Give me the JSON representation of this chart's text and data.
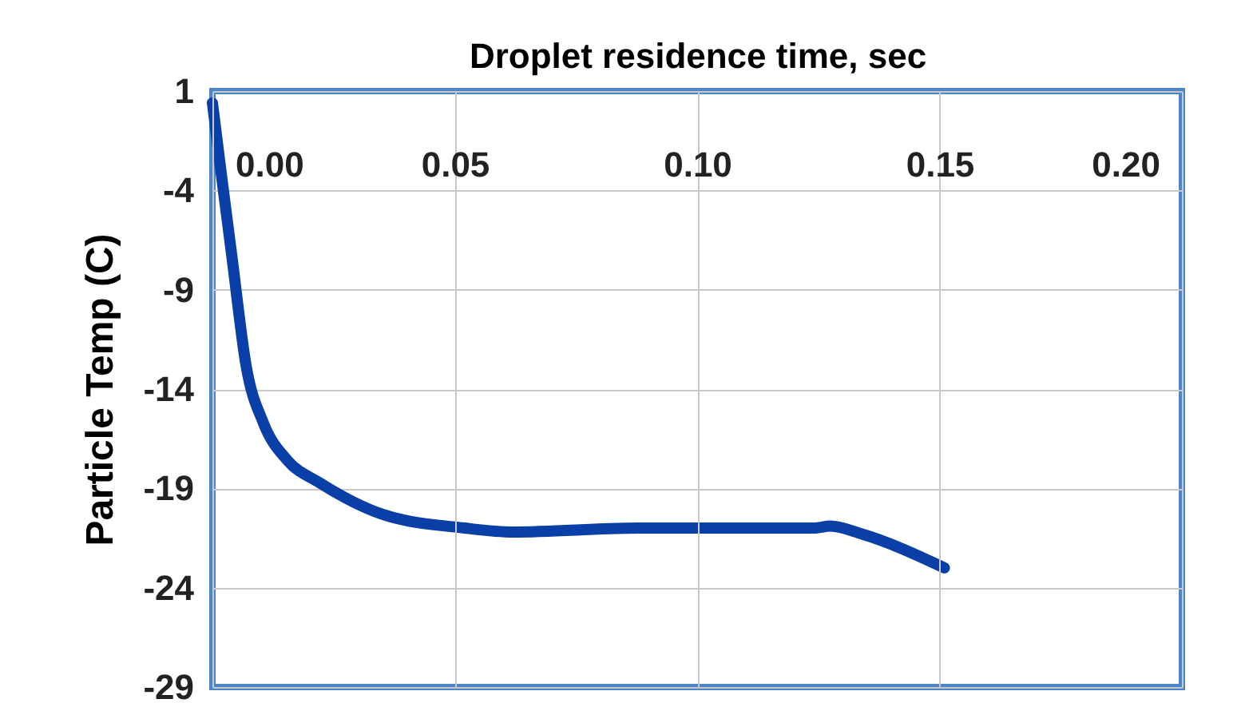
{
  "chart_data": {
    "type": "line",
    "xlabel": "Droplet residence time, sec",
    "ylabel": "Particle Temp (C)",
    "xlim": [
      0,
      0.2
    ],
    "xticks": [
      {
        "value": 0,
        "label": "0.00"
      },
      {
        "value": 0.05,
        "label": "0.05"
      },
      {
        "value": 0.1,
        "label": "0.10"
      },
      {
        "value": 0.15,
        "label": "0.15"
      },
      {
        "value": 0.2,
        "label": "0.20"
      }
    ],
    "ylim": [
      -29,
      1
    ],
    "yticks": [
      1,
      -4,
      -9,
      -14,
      -19,
      -24,
      -29
    ],
    "grid": true,
    "marker": "none",
    "line_style": "solid",
    "series": [
      {
        "color": "#0a3fa8",
        "x": [
          0,
          0.002,
          0.004,
          0.007,
          0.0105,
          0.0155,
          0.022,
          0.035,
          0.052,
          0.062,
          0.088,
          0.124,
          0.1275,
          0.134,
          0.151
        ],
        "values": [
          0.4,
          -3.5,
          -7.3,
          -12.9,
          -15.7,
          -17.6,
          -18.7,
          -20.3,
          -21.0,
          -21.2,
          -21.0,
          -21.0,
          -20.9,
          -21.3,
          -23.0
        ]
      }
    ]
  }
}
